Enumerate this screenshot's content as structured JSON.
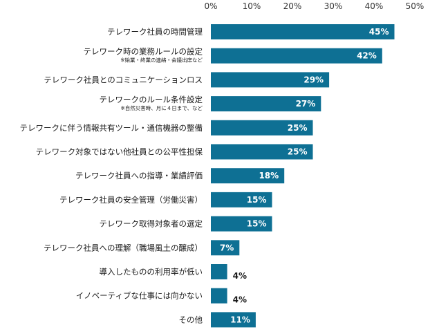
{
  "chart_data": {
    "type": "bar",
    "orientation": "horizontal",
    "x_ticks": [
      "0%",
      "10%",
      "20%",
      "30%",
      "40%",
      "50%"
    ],
    "xlim": [
      0,
      50
    ],
    "bar_color": "#0e7094",
    "grid": false,
    "categories": [
      {
        "label": "テレワーク社員の時間管理",
        "value": 45,
        "value_label": "45%"
      },
      {
        "label": "テレワーク時の業務ルールの設定",
        "note": "※始業・終業の連絡・会議出席など",
        "value": 42,
        "value_label": "42%"
      },
      {
        "label": "テレワーク社員とのコミュニケーションロス",
        "value": 29,
        "value_label": "29%"
      },
      {
        "label": "テレワークのルール条件設定",
        "note": "※自然災害時、月に４日まで、など",
        "value": 27,
        "value_label": "27%"
      },
      {
        "label": "テレワークに伴う情報共有ツール・通信機器の整備",
        "value": 25,
        "value_label": "25%"
      },
      {
        "label": "テレワーク対象ではない他社員との公平性担保",
        "value": 25,
        "value_label": "25%"
      },
      {
        "label": "テレワーク社員への指導・業績評価",
        "value": 18,
        "value_label": "18%"
      },
      {
        "label": "テレワーク社員の安全管理（労働災害）",
        "value": 15,
        "value_label": "15%"
      },
      {
        "label": "テレワーク取得対象者の選定",
        "value": 15,
        "value_label": "15%"
      },
      {
        "label": "テレワーク社員への理解（職場風土の醸成）",
        "value": 7,
        "value_label": "7%"
      },
      {
        "label": "導入したものの利用率が低い",
        "value": 4,
        "value_label": "4%"
      },
      {
        "label": "イノベーティブな仕事には向かない",
        "value": 4,
        "value_label": "4%"
      },
      {
        "label": "その他",
        "value": 11,
        "value_label": "11%"
      }
    ]
  }
}
